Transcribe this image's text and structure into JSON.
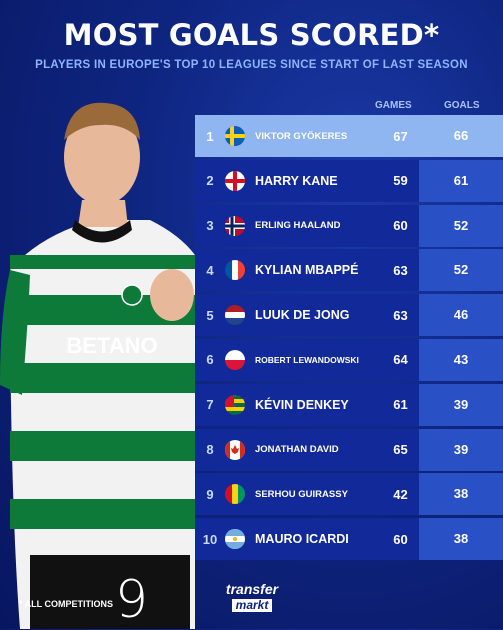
{
  "header": {
    "title": "MOST GOALS SCORED*",
    "subtitle": "PLAYERS IN EUROPE'S TOP 10 LEAGUES SINCE START OF LAST SEASON"
  },
  "columns": {
    "games": "GAMES",
    "goals": "GOALS"
  },
  "shirt_sponsor": "BETANO",
  "rows": [
    {
      "rank": "1",
      "flag": "sweden-flag-icon",
      "name": "VIKTOR GYÖKERES",
      "games": "67",
      "goals": "66"
    },
    {
      "rank": "2",
      "flag": "england-flag-icon",
      "name": "HARRY KANE",
      "games": "59",
      "goals": "61"
    },
    {
      "rank": "3",
      "flag": "norway-flag-icon",
      "name": "ERLING HAALAND",
      "games": "60",
      "goals": "52"
    },
    {
      "rank": "4",
      "flag": "france-flag-icon",
      "name": "KYLIAN MBAPPÉ",
      "games": "63",
      "goals": "52"
    },
    {
      "rank": "5",
      "flag": "netherlands-flag-icon",
      "name": "LUUK DE JONG",
      "games": "63",
      "goals": "46"
    },
    {
      "rank": "6",
      "flag": "poland-flag-icon",
      "name": "ROBERT LEWANDOWSKI",
      "games": "64",
      "goals": "43"
    },
    {
      "rank": "7",
      "flag": "togo-flag-icon",
      "name": "KÉVIN DENKEY",
      "games": "61",
      "goals": "39"
    },
    {
      "rank": "8",
      "flag": "canada-flag-icon",
      "name": "JONATHAN DAVID",
      "games": "65",
      "goals": "39"
    },
    {
      "rank": "9",
      "flag": "guinea-flag-icon",
      "name": "SERHOU GUIRASSY",
      "games": "42",
      "goals": "38"
    },
    {
      "rank": "10",
      "flag": "argentina-flag-icon",
      "name": "MAURO ICARDI",
      "games": "60",
      "goals": "38"
    }
  ],
  "footnote": "* ALL COMPETITIONS",
  "shirt_number": "9",
  "logo": {
    "line1": "transfer",
    "line2": "markt"
  },
  "colors": {
    "background": "#0e2580",
    "highlight_row": "#8fb6f0",
    "goals_column": "#2a50c6",
    "subtitle": "#8fb4ff"
  }
}
